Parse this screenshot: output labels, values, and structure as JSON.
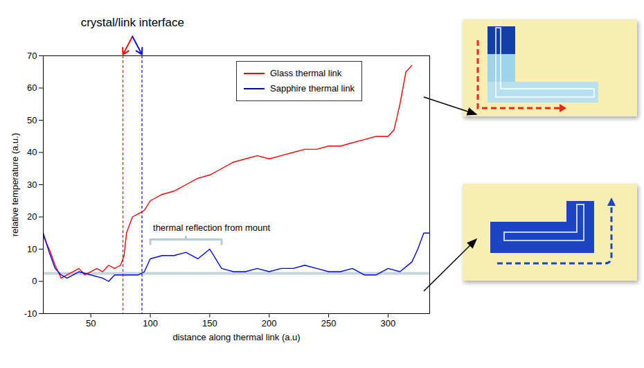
{
  "chart_data": {
    "type": "line",
    "xlabel": "distance along thermal link (a.u)",
    "ylabel": "relative temperature (a.u.)",
    "xlim": [
      10,
      335
    ],
    "xticks": [
      50,
      100,
      150,
      200,
      250,
      300
    ],
    "ylim": [
      -10,
      70
    ],
    "yticks": [
      -10,
      0,
      10,
      20,
      30,
      40,
      50,
      60,
      70
    ],
    "legend": "top",
    "series": [
      {
        "name": "Glass thermal link",
        "color": "#ff0000",
        "x": [
          10,
          15,
          20,
          25,
          30,
          35,
          40,
          45,
          50,
          55,
          60,
          65,
          70,
          75,
          78,
          80,
          85,
          90,
          95,
          100,
          110,
          120,
          130,
          140,
          150,
          160,
          170,
          180,
          190,
          200,
          210,
          220,
          230,
          240,
          250,
          260,
          270,
          280,
          290,
          300,
          305,
          310,
          315,
          320
        ],
        "values": [
          14,
          10,
          5,
          1,
          2,
          3,
          4,
          2,
          3,
          4,
          3,
          5,
          4,
          5,
          8,
          15,
          20,
          21,
          22,
          25,
          27,
          28,
          30,
          32,
          33,
          35,
          37,
          38,
          39,
          38,
          39,
          40,
          41,
          41,
          42,
          42,
          43,
          44,
          45,
          45,
          47,
          55,
          65,
          67
        ]
      },
      {
        "name": "Sapphire thermal link",
        "color": "#0000ff",
        "x": [
          10,
          15,
          20,
          25,
          30,
          40,
          50,
          60,
          65,
          70,
          80,
          90,
          95,
          100,
          110,
          120,
          130,
          140,
          150,
          155,
          160,
          170,
          180,
          190,
          200,
          210,
          220,
          230,
          240,
          250,
          260,
          270,
          280,
          290,
          300,
          310,
          320,
          325,
          330,
          335
        ],
        "values": [
          15,
          9,
          4,
          2,
          1,
          3,
          2,
          1,
          0,
          2,
          2,
          2,
          3,
          7,
          8,
          8,
          9,
          7,
          10,
          7,
          4,
          3,
          3,
          4,
          3,
          4,
          4,
          5,
          4,
          3,
          3,
          4,
          2,
          2,
          4,
          3,
          6,
          10,
          15,
          15
        ]
      }
    ],
    "baseline": 2.5,
    "annotations": [
      {
        "text": "crystal/link interface",
        "x": [
          77,
          93
        ],
        "colors": [
          "#ff0000",
          "#0000ff"
        ]
      },
      {
        "text": "thermal reflection from mount",
        "x": [
          100,
          160
        ],
        "y": 13
      }
    ]
  }
}
